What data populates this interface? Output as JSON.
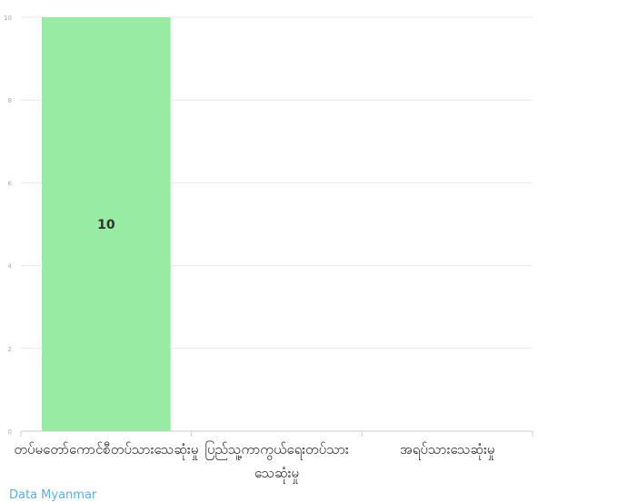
{
  "chart_data": {
    "type": "bar",
    "categories": [
      "တပ်မတော်ကောင်စီတပ်သားသေဆုံးမှု",
      "ပြည်သူ့ကာကွယ်ရေးတပ်သား သေဆုံးမှု",
      "အရပ်သားသေဆုံးမှု"
    ],
    "values": [
      10,
      0,
      0
    ],
    "data_labels": [
      "10",
      "",
      ""
    ],
    "ylim": [
      0,
      10
    ],
    "yticks": [
      0,
      2,
      4,
      6,
      8,
      10
    ],
    "grid": true,
    "bar_color": "#98eba2",
    "label_color": "#333333",
    "title": "",
    "xlabel": "",
    "ylabel": ""
  },
  "footer": {
    "link_text": "Data  Myanmar"
  }
}
